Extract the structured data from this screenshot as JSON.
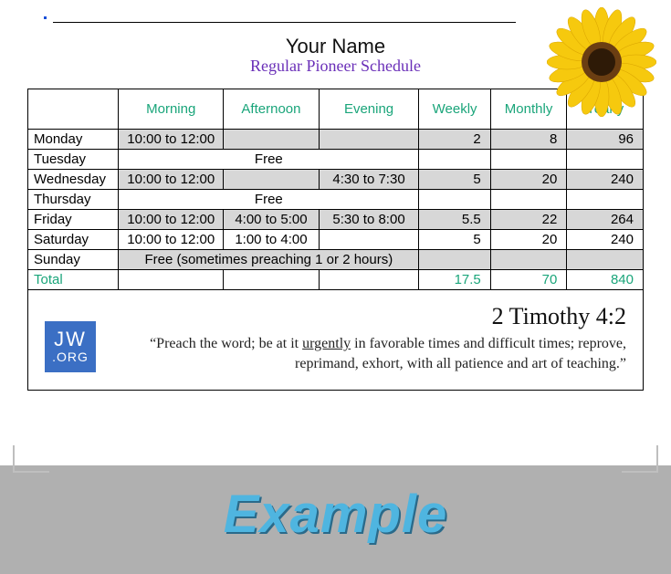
{
  "header": {
    "name": "Your Name",
    "subtitle": "Regular Pioneer Schedule"
  },
  "columns": [
    "Morning",
    "Afternoon",
    "Evening",
    "Weekly",
    "Monthly",
    "Yearly"
  ],
  "rows": [
    {
      "day": "Monday",
      "shade": true,
      "morning": "10:00 to 12:00",
      "afternoon": "",
      "evening": "",
      "weekly": "2",
      "monthly": "8",
      "yearly": "96",
      "free": false
    },
    {
      "day": "Tuesday",
      "shade": false,
      "free": true,
      "free_text": "Free"
    },
    {
      "day": "Wednesday",
      "shade": true,
      "morning": "10:00 to 12:00",
      "afternoon": "",
      "evening": "4:30 to 7:30",
      "weekly": "5",
      "monthly": "20",
      "yearly": "240",
      "free": false
    },
    {
      "day": "Thursday",
      "shade": false,
      "free": true,
      "free_text": "Free"
    },
    {
      "day": "Friday",
      "shade": true,
      "morning": "10:00 to 12:00",
      "afternoon": "4:00 to 5:00",
      "evening": "5:30 to 8:00",
      "weekly": "5.5",
      "monthly": "22",
      "yearly": "264",
      "free": false
    },
    {
      "day": "Saturday",
      "shade": false,
      "morning": "10:00 to 12:00",
      "afternoon": "1:00 to 4:00",
      "evening": "",
      "weekly": "5",
      "monthly": "20",
      "yearly": "240",
      "free": false
    },
    {
      "day": "Sunday",
      "shade": true,
      "free": true,
      "free_text": "Free (sometimes preaching 1 or 2 hours)"
    }
  ],
  "total": {
    "label": "Total",
    "weekly": "17.5",
    "monthly": "70",
    "yearly": "840"
  },
  "scripture": {
    "logo_l1": "JW",
    "logo_l2": ".ORG",
    "ref": "2 Timothy 4:2",
    "quote_open": "“",
    "part1": "Preach the word; be at it ",
    "urgent": "urgently",
    "part2": " in favorable times and difficult times; reprove, reprimand, exhort, with all patience and art of teaching.”"
  },
  "footer_label": "Example",
  "colors": {
    "header_green": "#1aa57a",
    "subtitle_purple": "#6a2fb8",
    "logo_blue": "#3b6fc4",
    "example_blue": "#4fb5e0",
    "row_shade": "#d7d7d7",
    "page_bg": "#ffffff",
    "outer_bg": "#b0b0b0"
  },
  "sunflower": {
    "petal_color": "#f6c90e",
    "petal_stroke": "#d9a400",
    "center_outer": "#6b3e12",
    "center_inner": "#2e1a07"
  }
}
